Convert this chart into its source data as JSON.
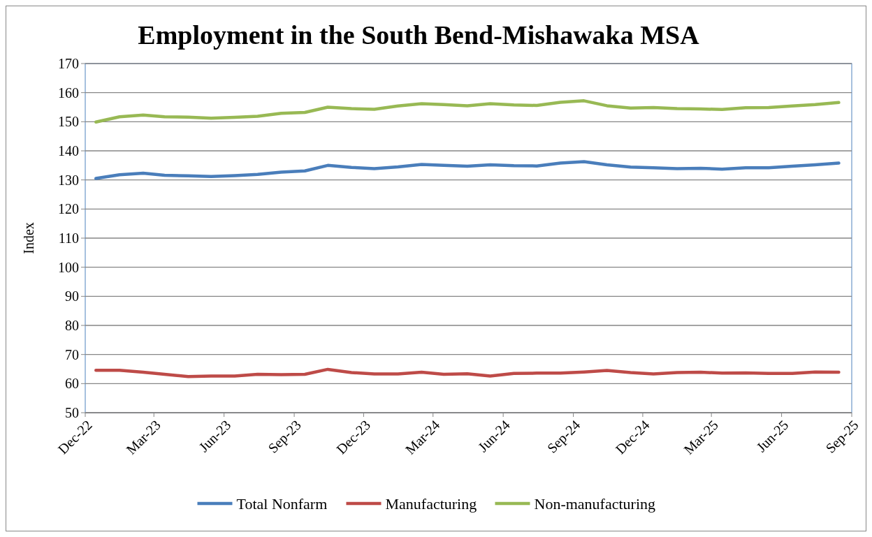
{
  "chart_data": {
    "type": "line",
    "title": "Employment in the South Bend-Mishawaka MSA",
    "ylabel": "Index",
    "x": [
      "2022-12-15",
      "2023-01-15",
      "2023-02-15",
      "2023-03-15",
      "2023-04-15",
      "2023-05-15",
      "2023-06-15",
      "2023-07-15",
      "2023-08-15",
      "2023-09-15",
      "2023-10-15",
      "2023-11-15",
      "2023-12-15",
      "2024-01-15",
      "2024-02-15",
      "2024-03-15",
      "2024-04-15",
      "2024-05-15",
      "2024-06-15",
      "2024-07-15",
      "2024-08-15",
      "2024-09-15",
      "2024-10-15",
      "2024-11-15",
      "2024-12-15",
      "2025-01-15",
      "2025-02-15",
      "2025-03-15",
      "2025-04-15",
      "2025-05-15",
      "2025-06-15",
      "2025-07-15",
      "2025-08-15"
    ],
    "xlim": [
      "2022-12-01",
      "2025-09-01"
    ],
    "xticks": [
      {
        "value": "2022-12-01",
        "label": "Dec-22"
      },
      {
        "value": "2023-03-01",
        "label": "Mar-23"
      },
      {
        "value": "2023-06-01",
        "label": "Jun-23"
      },
      {
        "value": "2023-09-01",
        "label": "Sep-23"
      },
      {
        "value": "2023-12-01",
        "label": "Dec-23"
      },
      {
        "value": "2024-03-01",
        "label": "Mar-24"
      },
      {
        "value": "2024-06-01",
        "label": "Jun-24"
      },
      {
        "value": "2024-09-01",
        "label": "Sep-24"
      },
      {
        "value": "2024-12-01",
        "label": "Dec-24"
      },
      {
        "value": "2025-03-01",
        "label": "Mar-25"
      },
      {
        "value": "2025-06-01",
        "label": "Jun-25"
      },
      {
        "value": "2025-09-01",
        "label": "Sep-25"
      }
    ],
    "ylim": [
      50,
      170
    ],
    "yticks": [
      50,
      60,
      70,
      80,
      90,
      100,
      110,
      120,
      130,
      140,
      150,
      160,
      170
    ],
    "grid": "y",
    "legend": "bottom",
    "marker": "none",
    "line_style": "solid",
    "series": [
      {
        "name": "Total Nonfarm",
        "color": "#4a7ebb",
        "values": [
          130.5,
          131.8,
          132.3,
          131.6,
          131.4,
          131.2,
          131.5,
          131.9,
          132.7,
          133.1,
          135.0,
          134.3,
          133.9,
          134.5,
          135.3,
          135.0,
          134.7,
          135.2,
          134.9,
          134.8,
          135.8,
          136.3,
          135.2,
          134.4,
          134.2,
          133.9,
          134.0,
          133.7,
          134.2,
          134.2,
          134.7,
          135.2,
          135.8
        ]
      },
      {
        "name": "Manufacturing",
        "color": "#be4b48",
        "values": [
          64.6,
          64.6,
          63.9,
          63.2,
          62.4,
          62.6,
          62.6,
          63.2,
          63.1,
          63.2,
          64.9,
          63.8,
          63.3,
          63.3,
          63.9,
          63.2,
          63.4,
          62.6,
          63.5,
          63.6,
          63.6,
          64.0,
          64.5,
          63.8,
          63.3,
          63.8,
          63.9,
          63.6,
          63.7,
          63.5,
          63.5,
          64.0,
          63.9
        ]
      },
      {
        "name": "Non-manufacturing",
        "color": "#98b954",
        "values": [
          149.9,
          151.7,
          152.3,
          151.7,
          151.6,
          151.2,
          151.5,
          151.9,
          152.9,
          153.2,
          155.0,
          154.5,
          154.3,
          155.4,
          156.2,
          155.9,
          155.5,
          156.2,
          155.8,
          155.6,
          156.7,
          157.2,
          155.5,
          154.7,
          154.9,
          154.5,
          154.4,
          154.2,
          154.8,
          154.9,
          155.4,
          155.9,
          156.6
        ]
      }
    ]
  }
}
